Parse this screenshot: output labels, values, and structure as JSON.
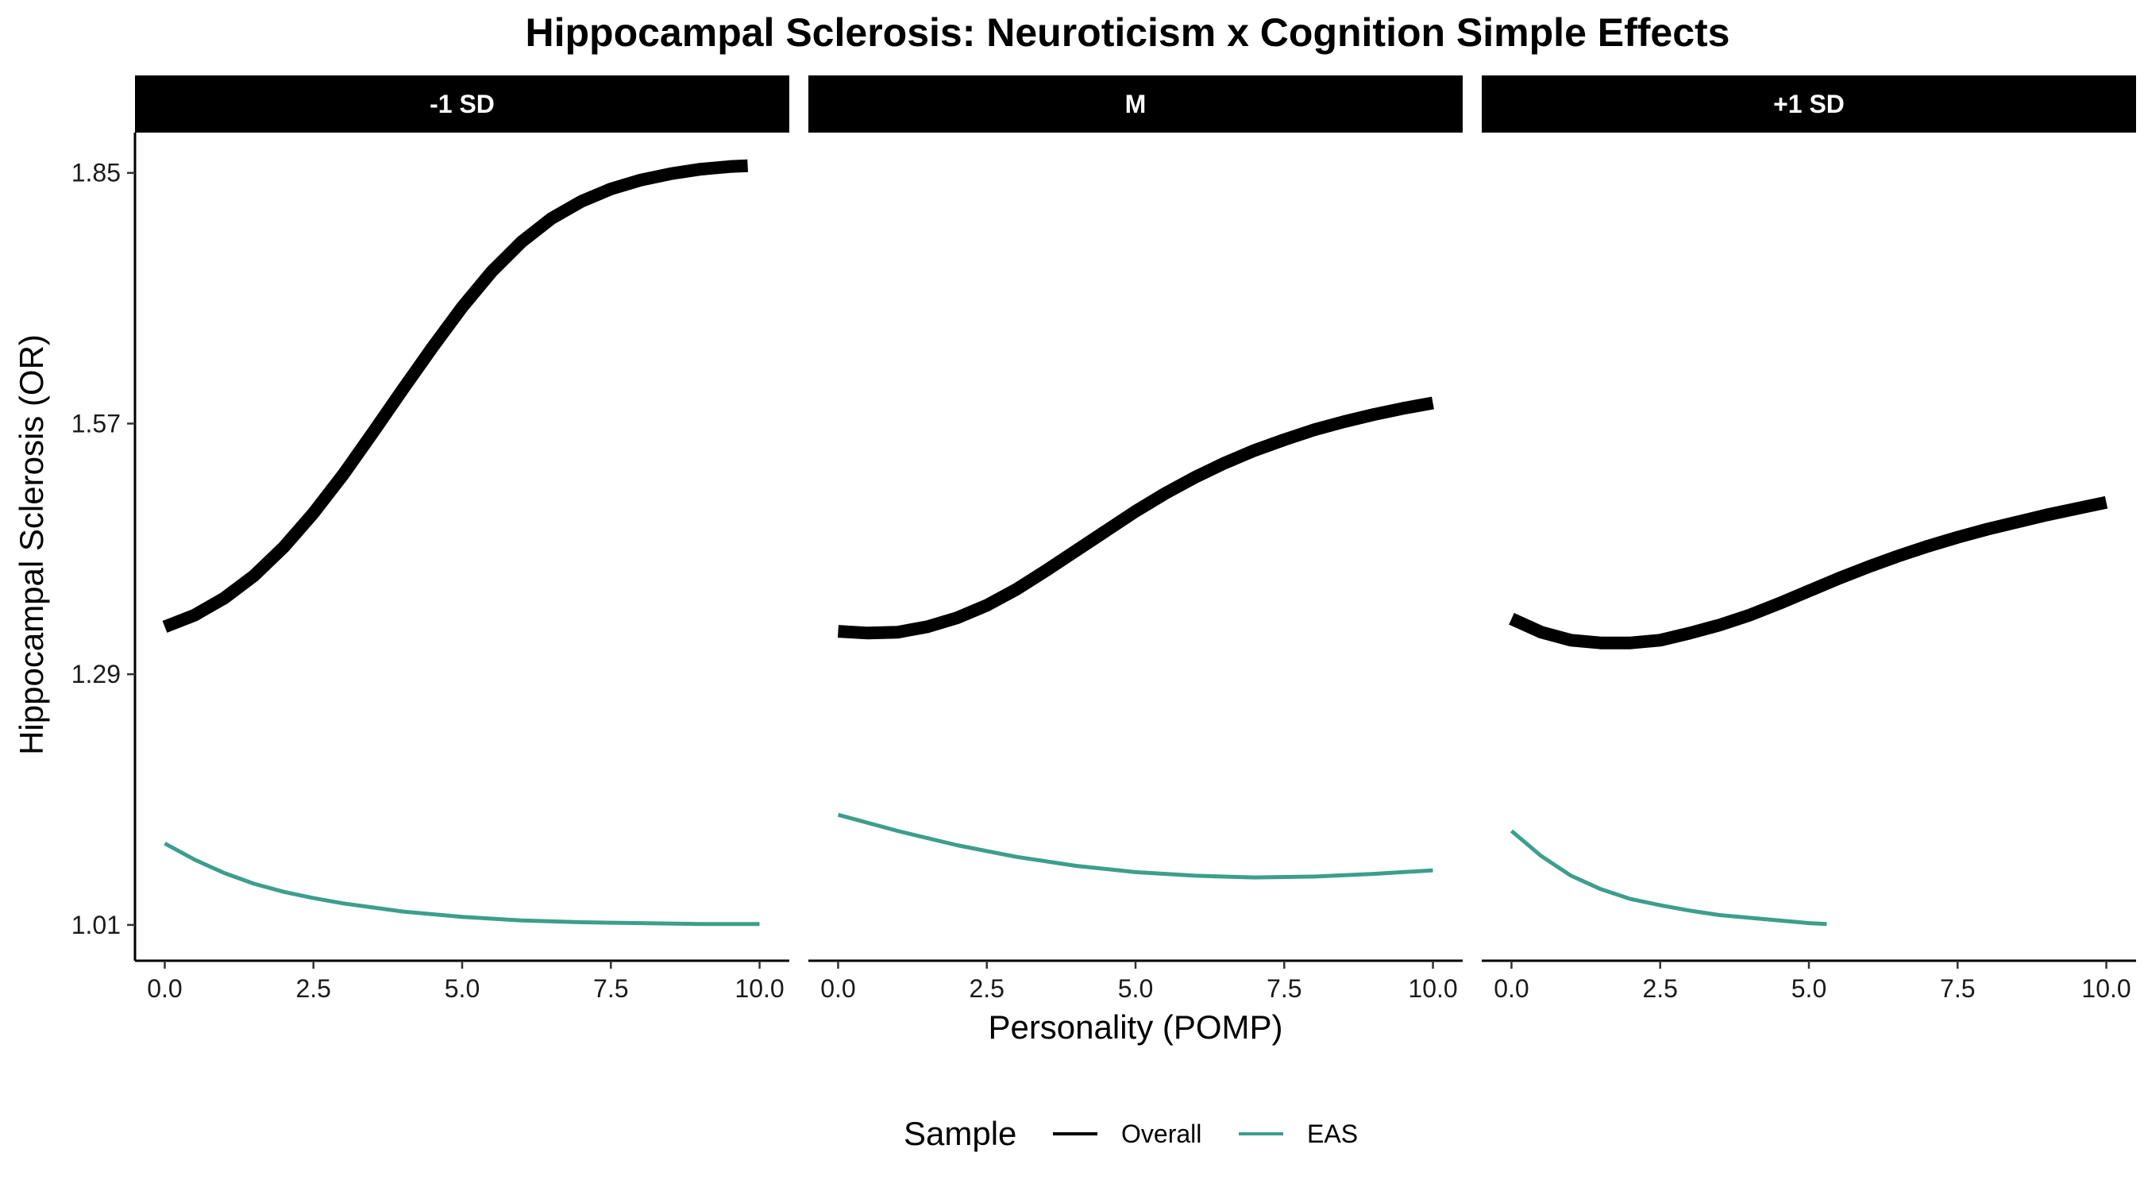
{
  "chart_data": {
    "type": "line",
    "title": "Hippocampal Sclerosis: Neuroticism x Cognition Simple Effects",
    "xlabel": "Personality (POMP)",
    "ylabel": "Hippocampal Sclerosis (OR)",
    "xlim": [
      -0.5,
      10.5
    ],
    "ylim": [
      0.97,
      1.895
    ],
    "x_ticks": [
      0,
      2.5,
      5,
      7.5,
      10
    ],
    "x_tick_labels": [
      "0.0",
      "2.5",
      "5.0",
      "7.5",
      "10.0"
    ],
    "y_ticks": [
      1.01,
      1.29,
      1.57,
      1.85
    ],
    "y_tick_labels": [
      "1.01",
      "1.29",
      "1.57",
      "1.85"
    ],
    "grid": false,
    "legend": {
      "title": "Sample",
      "position": "bottom",
      "entries": [
        {
          "label": "Overall",
          "color": "#000000"
        },
        {
          "label": "EAS",
          "color": "#3d9e8c"
        }
      ]
    },
    "panels": [
      {
        "label": "-1 SD",
        "series": [
          {
            "name": "Overall",
            "color": "#000000",
            "x": [
              0,
              0.5,
              1,
              1.5,
              2,
              2.5,
              3,
              3.5,
              4,
              4.5,
              5,
              5.5,
              6,
              6.5,
              7,
              7.5,
              8,
              8.5,
              9,
              9.5,
              9.8
            ],
            "y": [
              1.343,
              1.356,
              1.375,
              1.4,
              1.432,
              1.47,
              1.513,
              1.56,
              1.608,
              1.655,
              1.7,
              1.74,
              1.773,
              1.799,
              1.818,
              1.832,
              1.842,
              1.849,
              1.854,
              1.857,
              1.858
            ]
          },
          {
            "name": "EAS",
            "color": "#3d9e8c",
            "x": [
              0,
              0.5,
              1,
              1.5,
              2,
              2.5,
              3,
              4,
              5,
              6,
              7,
              8,
              9,
              10
            ],
            "y": [
              1.101,
              1.083,
              1.068,
              1.056,
              1.047,
              1.04,
              1.034,
              1.025,
              1.019,
              1.015,
              1.013,
              1.012,
              1.011,
              1.011
            ]
          }
        ]
      },
      {
        "label": "M",
        "series": [
          {
            "name": "Overall",
            "color": "#000000",
            "x": [
              0,
              0.5,
              1,
              1.5,
              2,
              2.5,
              3,
              3.5,
              4,
              4.5,
              5,
              5.5,
              6,
              6.5,
              7,
              7.5,
              8,
              8.5,
              9,
              9.5,
              10
            ],
            "y": [
              1.338,
              1.336,
              1.337,
              1.343,
              1.353,
              1.367,
              1.385,
              1.406,
              1.428,
              1.45,
              1.472,
              1.492,
              1.51,
              1.526,
              1.54,
              1.552,
              1.563,
              1.572,
              1.58,
              1.587,
              1.593
            ]
          },
          {
            "name": "EAS",
            "color": "#3d9e8c",
            "x": [
              0,
              1,
              2,
              3,
              4,
              5,
              6,
              7,
              8,
              9,
              10
            ],
            "y": [
              1.133,
              1.115,
              1.099,
              1.086,
              1.076,
              1.069,
              1.065,
              1.063,
              1.064,
              1.067,
              1.071
            ]
          }
        ]
      },
      {
        "label": "+1 SD",
        "series": [
          {
            "name": "Overall",
            "color": "#000000",
            "x": [
              0,
              0.5,
              1,
              1.5,
              2,
              2.5,
              3,
              3.5,
              4,
              4.5,
              5,
              5.5,
              6,
              6.5,
              7,
              7.5,
              8,
              8.5,
              9,
              9.5,
              10
            ],
            "y": [
              1.352,
              1.337,
              1.328,
              1.325,
              1.325,
              1.328,
              1.336,
              1.345,
              1.356,
              1.369,
              1.383,
              1.397,
              1.41,
              1.422,
              1.433,
              1.443,
              1.452,
              1.46,
              1.468,
              1.475,
              1.482
            ]
          },
          {
            "name": "EAS",
            "color": "#3d9e8c",
            "x": [
              0,
              0.5,
              1,
              1.5,
              2,
              2.5,
              3,
              3.5,
              4,
              4.5,
              5,
              5.3
            ],
            "y": [
              1.115,
              1.087,
              1.065,
              1.05,
              1.039,
              1.032,
              1.026,
              1.021,
              1.018,
              1.015,
              1.012,
              1.011
            ]
          }
        ]
      }
    ]
  }
}
